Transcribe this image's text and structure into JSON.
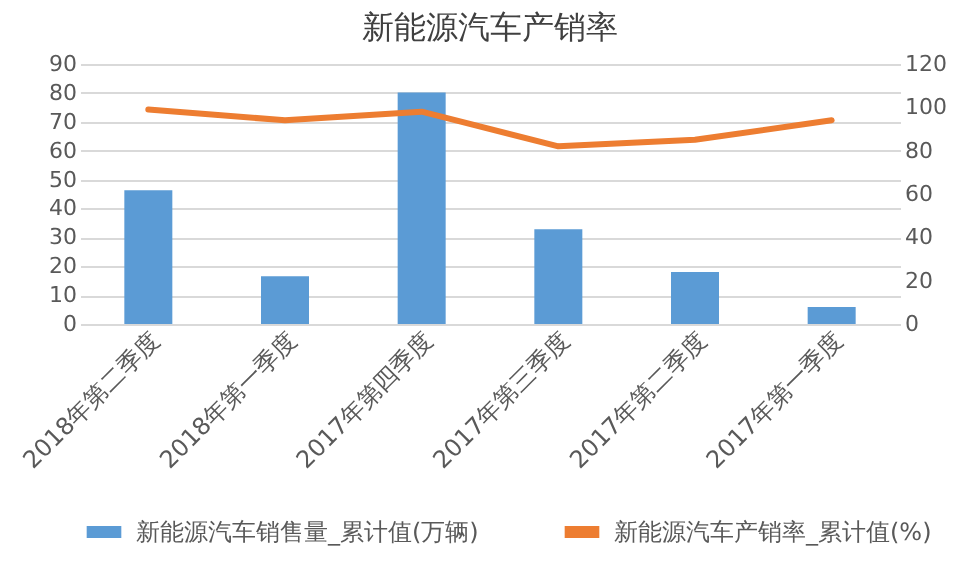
{
  "chart_data": {
    "type": "bar",
    "title": "新能源汽车产销率",
    "categories": [
      "2018年第二季度",
      "2018年第一季度",
      "2017年第四季度",
      "2017年第三季度",
      "2017年第二季度",
      "2017年第一季度"
    ],
    "series": [
      {
        "name": "新能源汽车销售量_累计值(万辆)",
        "color": "#5b9bd5",
        "values": [
          46.3,
          16.5,
          80.1,
          32.8,
          18,
          5.9
        ]
      },
      {
        "name": "新能源汽车产销率_累计值(%)",
        "type": "line",
        "axis": "y2",
        "color": "#ed7d31",
        "values": [
          99,
          94,
          98,
          82,
          85,
          94
        ]
      }
    ],
    "ylim": [
      0,
      90
    ],
    "yticks": [
      0,
      10,
      20,
      30,
      40,
      50,
      60,
      70,
      80,
      90
    ],
    "y2lim": [
      0,
      120
    ],
    "y2ticks": [
      0,
      20,
      40,
      60,
      80,
      100,
      120
    ],
    "grid": "y",
    "legend": "bottom",
    "marker": "none"
  }
}
